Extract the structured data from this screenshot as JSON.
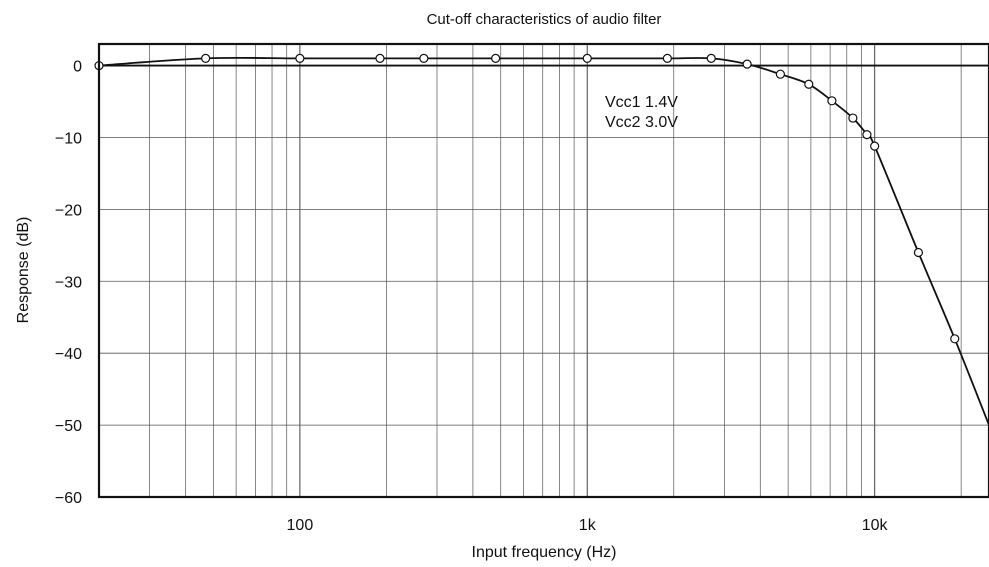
{
  "chart_data": {
    "type": "line",
    "title": "Cut-off characteristics of audio filter",
    "xlabel": "Input frequency (Hz)",
    "ylabel": "Response (dB)",
    "xscale": "log",
    "xlim": [
      20,
      25000
    ],
    "ylim": [
      -60,
      3
    ],
    "grid": true,
    "x_ticks": [
      {
        "value": 100,
        "label": "100"
      },
      {
        "value": 1000,
        "label": "1k"
      },
      {
        "value": 10000,
        "label": "10k"
      }
    ],
    "y_ticks": [
      {
        "value": 0,
        "label": "0"
      },
      {
        "value": -10,
        "label": "−10"
      },
      {
        "value": -20,
        "label": "−20"
      },
      {
        "value": -30,
        "label": "−30"
      },
      {
        "value": -40,
        "label": "−40"
      },
      {
        "value": -50,
        "label": "−50"
      },
      {
        "value": -60,
        "label": "−60"
      }
    ],
    "annotations": [
      "Vcc1  1.4V",
      "Vcc2  3.0V"
    ],
    "reference_line_db": 0,
    "series": [
      {
        "x": [
          20,
          47,
          100,
          190,
          270,
          480,
          1000,
          1900,
          2700,
          3600,
          4700,
          5900,
          7100,
          8400,
          9400,
          10000,
          14200,
          19000,
          25000
        ],
        "y": [
          0,
          1.0,
          1.0,
          1.0,
          1.0,
          1.0,
          1.0,
          1.0,
          1.0,
          0.2,
          -1.2,
          -2.6,
          -4.9,
          -7.3,
          -9.6,
          -11.2,
          -26.0,
          -38.0,
          -50.0
        ],
        "markers": [
          true,
          true,
          true,
          true,
          true,
          true,
          true,
          true,
          true,
          true,
          true,
          true,
          true,
          true,
          true,
          true,
          true,
          true,
          false
        ]
      }
    ],
    "colors": {
      "line": "#111111",
      "grid": "#555555",
      "marker_fill": "#ffffff"
    }
  }
}
